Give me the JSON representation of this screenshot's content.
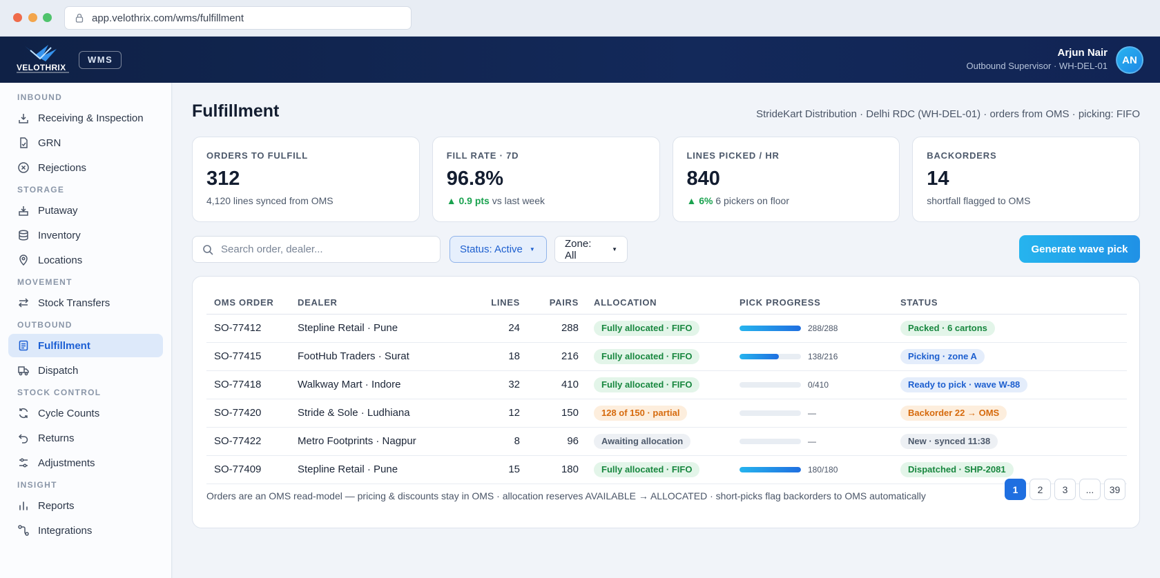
{
  "browser": {
    "url": "app.velothrix.com/wms/fulfillment"
  },
  "header": {
    "brand": "VELOTHRIX",
    "module_badge": "WMS",
    "user_name": "Arjun Nair",
    "user_role": "Outbound Supervisor · WH-DEL-01",
    "avatar_initials": "AN"
  },
  "sidebar": {
    "sections": [
      {
        "label": "INBOUND",
        "items": [
          {
            "label": "Receiving & Inspection",
            "icon": "inbox-download-icon"
          },
          {
            "label": "GRN",
            "icon": "document-check-icon"
          },
          {
            "label": "Rejections",
            "icon": "circle-x-icon"
          }
        ]
      },
      {
        "label": "STORAGE",
        "items": [
          {
            "label": "Putaway",
            "icon": "tray-arrow-icon"
          },
          {
            "label": "Inventory",
            "icon": "database-icon"
          },
          {
            "label": "Locations",
            "icon": "map-pin-icon"
          }
        ]
      },
      {
        "label": "MOVEMENT",
        "items": [
          {
            "label": "Stock Transfers",
            "icon": "swap-arrows-icon"
          }
        ]
      },
      {
        "label": "OUTBOUND",
        "items": [
          {
            "label": "Fulfillment",
            "icon": "clipboard-list-icon",
            "active": true
          },
          {
            "label": "Dispatch",
            "icon": "truck-icon"
          }
        ]
      },
      {
        "label": "STOCK CONTROL",
        "items": [
          {
            "label": "Cycle Counts",
            "icon": "refresh-icon"
          },
          {
            "label": "Returns",
            "icon": "undo-icon"
          },
          {
            "label": "Adjustments",
            "icon": "sliders-icon"
          }
        ]
      },
      {
        "label": "INSIGHT",
        "items": [
          {
            "label": "Reports",
            "icon": "bar-chart-icon"
          },
          {
            "label": "Integrations",
            "icon": "nodes-icon"
          }
        ]
      }
    ]
  },
  "page": {
    "title": "Fulfillment",
    "context": "StrideKart Distribution · Delhi RDC (WH-DEL-01) · orders from OMS · picking: FIFO"
  },
  "kpis": [
    {
      "label": "ORDERS TO FULFILL",
      "value": "312",
      "sub": "4,120 lines synced from OMS"
    },
    {
      "label": "FILL RATE · 7D",
      "value": "96.8%",
      "delta": "▲ 0.9 pts",
      "sub": " vs last week"
    },
    {
      "label": "LINES PICKED / HR",
      "value": "840",
      "delta": "▲ 6%",
      "sub": " 6 pickers on floor"
    },
    {
      "label": "BACKORDERS",
      "value": "14",
      "sub": "shortfall flagged to OMS"
    }
  ],
  "toolbar": {
    "search_placeholder": "Search order, dealer...",
    "status_filter": "Status: Active",
    "zone_filter": "Zone: All",
    "generate_button": "Generate wave pick"
  },
  "table": {
    "columns": [
      "OMS ORDER",
      "DEALER",
      "LINES",
      "PAIRS",
      "ALLOCATION",
      "PICK PROGRESS",
      "STATUS"
    ],
    "rows": [
      {
        "order": "SO-77412",
        "dealer": "Stepline Retail · Pune",
        "lines": "24",
        "pairs": "288",
        "allocation": "Fully allocated · FIFO",
        "alloc_tone": "green",
        "progress": 1.0,
        "progress_text": "288/288",
        "status": "Packed · 6 cartons",
        "status_tone": "green"
      },
      {
        "order": "SO-77415",
        "dealer": "FootHub Traders · Surat",
        "lines": "18",
        "pairs": "216",
        "allocation": "Fully allocated · FIFO",
        "alloc_tone": "green",
        "progress": 0.639,
        "progress_text": "138/216",
        "status": "Picking · zone A",
        "status_tone": "blue"
      },
      {
        "order": "SO-77418",
        "dealer": "Walkway Mart · Indore",
        "lines": "32",
        "pairs": "410",
        "allocation": "Fully allocated · FIFO",
        "alloc_tone": "green",
        "progress": 0,
        "progress_text": "0/410",
        "status": "Ready to pick · wave W-88",
        "status_tone": "blue"
      },
      {
        "order": "SO-77420",
        "dealer": "Stride & Sole · Ludhiana",
        "lines": "12",
        "pairs": "150",
        "allocation": "128 of 150 · partial",
        "alloc_tone": "orange",
        "progress": 0,
        "progress_text": "—",
        "status": "Backorder 22 → OMS",
        "status_tone": "orange"
      },
      {
        "order": "SO-77422",
        "dealer": "Metro Footprints · Nagpur",
        "lines": "8",
        "pairs": "96",
        "allocation": "Awaiting allocation",
        "alloc_tone": "gray",
        "progress": 0,
        "progress_text": "—",
        "status": "New · synced 11:38",
        "status_tone": "gray"
      },
      {
        "order": "SO-77409",
        "dealer": "Stepline Retail · Pune",
        "lines": "15",
        "pairs": "180",
        "allocation": "Fully allocated · FIFO",
        "alloc_tone": "green",
        "progress": 1.0,
        "progress_text": "180/180",
        "status": "Dispatched · SHP-2081",
        "status_tone": "green"
      }
    ],
    "footnote": "Orders are an OMS read-model — pricing & discounts stay in OMS · allocation reserves AVAILABLE → ALLOCATED · short-picks flag backorders to OMS automatically"
  },
  "pagination": {
    "pages": [
      "1",
      "2",
      "3",
      "...",
      "39"
    ],
    "current": "1"
  },
  "colors": {
    "accent": "#1f6fe0",
    "header_bg": "#0f2146",
    "success": "#18873f",
    "warning": "#d66a0d"
  }
}
